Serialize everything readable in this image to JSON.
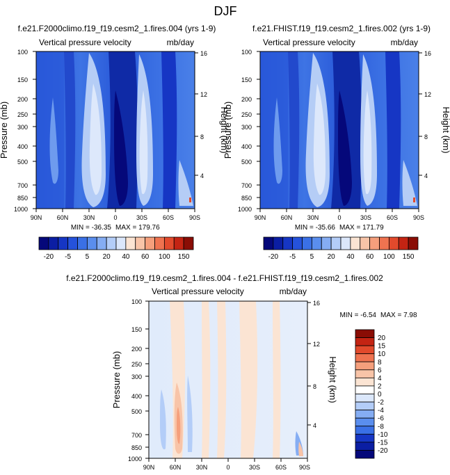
{
  "figure_title": "DJF",
  "chart_data": [
    {
      "type": "heatmap",
      "title": "f.e21.F2000climo.f19_f19.cesm2_1.fires.004 (yrs 1-9)",
      "subtitle_left": "Vertical pressure velocity",
      "subtitle_right": "mb/day",
      "ylabel": "Pressure (mb)",
      "ylabel_right": "Height (km)",
      "xticks": [
        "90N",
        "60N",
        "30N",
        "0",
        "30S",
        "60S",
        "90S"
      ],
      "yticks": [
        "100",
        "150",
        "200",
        "250",
        "300",
        "400",
        "500",
        "700",
        "850",
        "1000"
      ],
      "yticks_right": [
        "16",
        "12",
        "8",
        "4"
      ],
      "min_text": "MIN = -36.35",
      "max_text": "MAX = 179.76",
      "min": -36.35,
      "max": 179.76
    },
    {
      "type": "heatmap",
      "title": "f.e21.FHIST.f19_f19.cesm2_1.fires.002 (yrs 1-9)",
      "subtitle_left": "Vertical pressure velocity",
      "subtitle_right": "mb/day",
      "ylabel": "Pressure (mb)",
      "ylabel_right": "Height (km)",
      "xticks": [
        "90N",
        "60N",
        "30N",
        "0",
        "30S",
        "60S",
        "90S"
      ],
      "yticks": [
        "100",
        "150",
        "200",
        "250",
        "300",
        "400",
        "500",
        "700",
        "850",
        "1000"
      ],
      "yticks_right": [
        "16",
        "12",
        "8",
        "4"
      ],
      "min_text": "MIN = -35.66",
      "max_text": "MAX = 171.79",
      "min": -35.66,
      "max": 171.79
    },
    {
      "type": "heatmap",
      "title": "f.e21.F2000climo.f19_f19.cesm2_1.fires.004 - f.e21.FHIST.f19_f19.cesm2_1.fires.002",
      "subtitle_left": "Vertical pressure velocity",
      "subtitle_right": "mb/day",
      "ylabel": "Pressure (mb)",
      "ylabel_right": "Height (km)",
      "xticks": [
        "90N",
        "60N",
        "30N",
        "0",
        "30S",
        "60S",
        "90S"
      ],
      "yticks": [
        "100",
        "150",
        "200",
        "250",
        "300",
        "400",
        "500",
        "700",
        "850",
        "1000"
      ],
      "yticks_right": [
        "16",
        "12",
        "8",
        "4"
      ],
      "min_text": "MIN =  -6.54",
      "max_text": "MAX =   7.98",
      "min": -6.54,
      "max": 7.98
    }
  ],
  "colorbar_main": {
    "labels": [
      "-20",
      "-5",
      "5",
      "20",
      "40",
      "60",
      "100",
      "150"
    ],
    "colors": [
      "#05087a",
      "#0b1ea3",
      "#1636c4",
      "#2552db",
      "#3a70e6",
      "#5a8eee",
      "#85adf3",
      "#b3cdf8",
      "#dbe7fb",
      "#fbe4d3",
      "#f8c4a8",
      "#f59f7c",
      "#ef7350",
      "#e24a2c",
      "#c42413",
      "#8a0d05"
    ]
  },
  "colorbar_diff": {
    "labels": [
      "20",
      "15",
      "10",
      "8",
      "6",
      "4",
      "2",
      "0",
      "-2",
      "-4",
      "-6",
      "-8",
      "-10",
      "-15",
      "-20"
    ],
    "colors": [
      "#8a0d05",
      "#c42413",
      "#e24a2c",
      "#ef7350",
      "#f59f7c",
      "#f8c4a8",
      "#fbe4d3",
      "#ffffff",
      "#dbe7fb",
      "#b3cdf8",
      "#85adf3",
      "#5a8eee",
      "#3a70e6",
      "#1636c4",
      "#0b1ea3",
      "#05087a"
    ]
  }
}
